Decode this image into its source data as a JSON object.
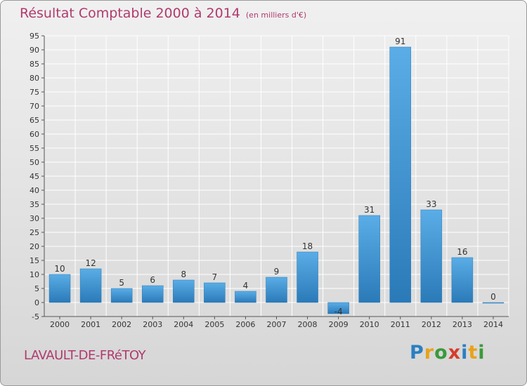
{
  "chart_data": {
    "type": "bar",
    "title": "Résultat Comptable 2000 à 2014",
    "subtitle": "(en milliers d'€)",
    "categories": [
      "2000",
      "2001",
      "2002",
      "2003",
      "2004",
      "2005",
      "2006",
      "2007",
      "2008",
      "2009",
      "2010",
      "2011",
      "2012",
      "2013",
      "2014"
    ],
    "values": [
      10,
      12,
      5,
      6,
      8,
      7,
      4,
      9,
      18,
      -4,
      31,
      91,
      33,
      16,
      0
    ],
    "ylim": [
      -5,
      95
    ],
    "yticks": [
      -5,
      0,
      5,
      10,
      15,
      20,
      25,
      30,
      35,
      40,
      45,
      50,
      55,
      60,
      65,
      70,
      75,
      80,
      85,
      90,
      95
    ],
    "grid": true,
    "colors": {
      "bar_light": "#5aade6",
      "bar_dark": "#2a7ab8",
      "grid": "#ffffff",
      "title": "#b03a6e"
    }
  },
  "footer": {
    "commune": "LAVAULT-DE-FRéTOY",
    "brand_letters": [
      "P",
      "r",
      "o",
      "x",
      "i",
      "t",
      "i"
    ],
    "brand_colors": [
      "#2b7fc1",
      "#e8a21b",
      "#3a9a3a",
      "#d63c2c",
      "#2b7fc1",
      "#e8a21b",
      "#3a9a3a"
    ]
  }
}
